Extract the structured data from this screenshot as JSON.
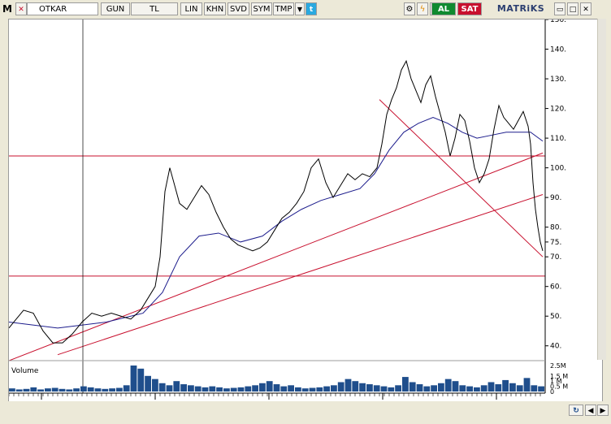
{
  "toolbar": {
    "logo": "M",
    "symbol": "OTKAR",
    "period": "GUN",
    "currency": "TL",
    "scale": "LIN",
    "khn": "KHN",
    "svd": "SVD",
    "sym": "SYM",
    "tmp": "TMP",
    "buy": "AL",
    "sell": "SAT",
    "brand": "MATRiKS"
  },
  "icons": {
    "close": "close-icon",
    "dropdown": "chevron-down-icon",
    "twitter": "twitter-icon",
    "settings": "gear-icon",
    "refresh": "lightning-icon",
    "palette": "palette-icon",
    "minimize": "minimize-icon",
    "maximize": "maximize-icon",
    "window_close": "close-icon"
  },
  "colors": {
    "price_line": "#000000",
    "moving_average": "#1c1c8c",
    "trend_lines": "#c8102e",
    "volume": "#1f4e8c",
    "buy": "#0f8a2f",
    "sell": "#c8102e"
  },
  "chart_data": {
    "type": "line",
    "price_axis": {
      "ticks": [
        "150.",
        "140.",
        "130.",
        "120.",
        "110.",
        "100.",
        "90.",
        "80.",
        "75.",
        "70.",
        "60.",
        "50.",
        "40."
      ],
      "ylim": [
        35,
        150
      ]
    },
    "x_ticks": [
      "14",
      "15",
      "16",
      "17",
      "18"
    ],
    "volume_label": "Volume",
    "volume_ticks": [
      "2.5M",
      "1.5 M",
      "1 M",
      "0.5 M",
      "0"
    ],
    "horizontal_levels": [
      104,
      63.5
    ],
    "price_series": [
      [
        0,
        46
      ],
      [
        3,
        49
      ],
      [
        6,
        52
      ],
      [
        10,
        51
      ],
      [
        14,
        45
      ],
      [
        18,
        41
      ],
      [
        22,
        41
      ],
      [
        26,
        44
      ],
      [
        30,
        48
      ],
      [
        34,
        51
      ],
      [
        38,
        50
      ],
      [
        42,
        51
      ],
      [
        46,
        50
      ],
      [
        50,
        49
      ],
      [
        54,
        52
      ],
      [
        57,
        56
      ],
      [
        60,
        60
      ],
      [
        62,
        70
      ],
      [
        64,
        92
      ],
      [
        66,
        100
      ],
      [
        68,
        94
      ],
      [
        70,
        88
      ],
      [
        73,
        86
      ],
      [
        76,
        90
      ],
      [
        79,
        94
      ],
      [
        82,
        91
      ],
      [
        85,
        85
      ],
      [
        88,
        80
      ],
      [
        91,
        76
      ],
      [
        94,
        74
      ],
      [
        97,
        73
      ],
      [
        100,
        72
      ],
      [
        103,
        73
      ],
      [
        106,
        75
      ],
      [
        109,
        79
      ],
      [
        112,
        83
      ],
      [
        115,
        85
      ],
      [
        118,
        88
      ],
      [
        121,
        92
      ],
      [
        124,
        100
      ],
      [
        127,
        103
      ],
      [
        130,
        95
      ],
      [
        133,
        90
      ],
      [
        136,
        94
      ],
      [
        139,
        98
      ],
      [
        142,
        96
      ],
      [
        145,
        98
      ],
      [
        148,
        97
      ],
      [
        151,
        100
      ],
      [
        153,
        108
      ],
      [
        155,
        118
      ],
      [
        157,
        123
      ],
      [
        159,
        127
      ],
      [
        161,
        133
      ],
      [
        163,
        136
      ],
      [
        165,
        130
      ],
      [
        167,
        126
      ],
      [
        169,
        122
      ],
      [
        171,
        128
      ],
      [
        173,
        131
      ],
      [
        175,
        124
      ],
      [
        177,
        118
      ],
      [
        179,
        112
      ],
      [
        181,
        104
      ],
      [
        183,
        110
      ],
      [
        185,
        118
      ],
      [
        187,
        116
      ],
      [
        189,
        109
      ],
      [
        191,
        100
      ],
      [
        193,
        95
      ],
      [
        195,
        98
      ],
      [
        197,
        103
      ],
      [
        199,
        113
      ],
      [
        201,
        121
      ],
      [
        203,
        117
      ],
      [
        205,
        115
      ],
      [
        207,
        113
      ],
      [
        209,
        116
      ],
      [
        211,
        119
      ],
      [
        213,
        114
      ],
      [
        214,
        108
      ],
      [
        215,
        95
      ],
      [
        216,
        86
      ],
      [
        217,
        80
      ],
      [
        218,
        75
      ],
      [
        219,
        72
      ]
    ],
    "moving_average_series": [
      [
        0,
        48
      ],
      [
        20,
        46
      ],
      [
        40,
        48
      ],
      [
        55,
        51
      ],
      [
        63,
        58
      ],
      [
        70,
        70
      ],
      [
        78,
        77
      ],
      [
        86,
        78
      ],
      [
        95,
        75
      ],
      [
        104,
        77
      ],
      [
        112,
        82
      ],
      [
        120,
        86
      ],
      [
        128,
        89
      ],
      [
        136,
        91
      ],
      [
        144,
        93
      ],
      [
        150,
        98
      ],
      [
        156,
        106
      ],
      [
        162,
        112
      ],
      [
        168,
        115
      ],
      [
        174,
        117
      ],
      [
        180,
        115
      ],
      [
        186,
        112
      ],
      [
        192,
        110
      ],
      [
        198,
        111
      ],
      [
        204,
        112
      ],
      [
        210,
        112
      ],
      [
        214,
        112
      ],
      [
        219,
        109
      ]
    ],
    "trend_lines": [
      {
        "from": [
          0,
          35
        ],
        "to": [
          219,
          105
        ]
      },
      {
        "from": [
          20,
          37
        ],
        "to": [
          219,
          91
        ]
      },
      {
        "from": [
          152,
          123
        ],
        "to": [
          219,
          70
        ]
      }
    ],
    "volume_series": [
      0.3,
      0.2,
      0.25,
      0.4,
      0.2,
      0.3,
      0.35,
      0.25,
      0.2,
      0.3,
      0.5,
      0.4,
      0.3,
      0.25,
      0.3,
      0.35,
      0.6,
      2.5,
      2.2,
      1.5,
      1.2,
      0.8,
      0.6,
      1.0,
      0.7,
      0.6,
      0.5,
      0.4,
      0.5,
      0.4,
      0.3,
      0.35,
      0.4,
      0.5,
      0.6,
      0.8,
      1.0,
      0.7,
      0.5,
      0.6,
      0.4,
      0.3,
      0.35,
      0.4,
      0.5,
      0.6,
      0.9,
      1.2,
      1.0,
      0.8,
      0.7,
      0.6,
      0.5,
      0.4,
      0.6,
      1.4,
      0.9,
      0.7,
      0.5,
      0.6,
      0.8,
      1.2,
      1.0,
      0.6,
      0.5,
      0.4,
      0.6,
      0.9,
      0.7,
      1.1,
      0.8,
      0.6,
      1.3,
      0.6,
      0.5
    ]
  }
}
